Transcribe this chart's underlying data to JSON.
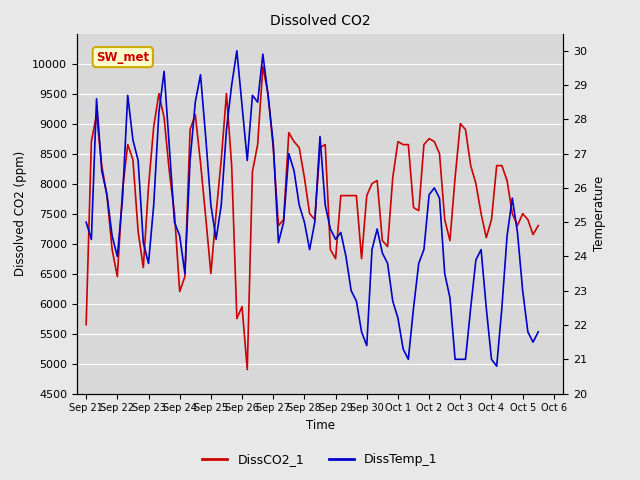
{
  "title": "Dissolved CO2",
  "xlabel": "Time",
  "ylabel_left": "Dissolved CO2 (ppm)",
  "ylabel_right": "Temperature",
  "ylim_left": [
    4500,
    10500
  ],
  "ylim_right": [
    20.0,
    30.5
  ],
  "yticks_left": [
    4500,
    5000,
    5500,
    6000,
    6500,
    7000,
    7500,
    8000,
    8500,
    9000,
    9500,
    10000
  ],
  "yticks_right": [
    20.0,
    21.0,
    22.0,
    23.0,
    24.0,
    25.0,
    26.0,
    27.0,
    28.0,
    29.0,
    30.0
  ],
  "annotation_text": "SW_met",
  "annotation_color": "#cc0000",
  "annotation_bg": "#ffffcc",
  "annotation_border": "#ccaa00",
  "line_color_co2": "#cc0000",
  "line_color_temp": "#0000cc",
  "legend_co2": "DissCO2_1",
  "legend_temp": "DissTemp_1",
  "background_color": "#e8e8e8",
  "plot_bg": "#d8d8d8",
  "time_points": [
    0.0,
    0.167,
    0.333,
    0.5,
    0.667,
    0.833,
    1.0,
    1.167,
    1.333,
    1.5,
    1.667,
    1.833,
    2.0,
    2.167,
    2.333,
    2.5,
    2.667,
    2.833,
    3.0,
    3.167,
    3.333,
    3.5,
    3.667,
    3.833,
    4.0,
    4.167,
    4.333,
    4.5,
    4.667,
    4.833,
    5.0,
    5.167,
    5.333,
    5.5,
    5.667,
    5.833,
    6.0,
    6.167,
    6.333,
    6.5,
    6.667,
    6.833,
    7.0,
    7.167,
    7.333,
    7.5,
    7.667,
    7.833,
    8.0,
    8.167,
    8.333,
    8.5,
    8.667,
    8.833,
    9.0,
    9.167,
    9.333,
    9.5,
    9.667,
    9.833,
    10.0,
    10.167,
    10.333,
    10.5,
    10.667,
    10.833,
    11.0,
    11.167,
    11.333,
    11.5,
    11.667,
    11.833,
    12.0,
    12.167,
    12.333,
    12.5,
    12.667,
    12.833,
    13.0,
    13.167,
    13.333,
    13.5,
    13.667,
    13.833,
    14.0,
    14.167,
    14.333,
    14.5
  ],
  "co2_values": [
    5650,
    8700,
    9150,
    8300,
    7800,
    6900,
    6450,
    7900,
    8650,
    8400,
    7200,
    6600,
    7950,
    8950,
    9500,
    9100,
    8200,
    7500,
    6200,
    6450,
    8900,
    9150,
    8350,
    7450,
    6500,
    7500,
    8400,
    9500,
    8300,
    5750,
    5950,
    4900,
    8200,
    8650,
    9950,
    9500,
    8600,
    7300,
    7400,
    8850,
    8700,
    8600,
    8100,
    7500,
    7400,
    8600,
    8650,
    6900,
    6750,
    7800,
    7800,
    7800,
    7800,
    6750,
    7800,
    8000,
    8050,
    7050,
    6950,
    8100,
    8700,
    8650,
    8650,
    7600,
    7550,
    8650,
    8750,
    8700,
    8500,
    7400,
    7050,
    8100,
    9000,
    8900,
    8300,
    8000,
    7500,
    7100,
    7400,
    8300,
    8300,
    8050,
    7500,
    7300,
    7500,
    7400,
    7150,
    7300
  ],
  "temp_values": [
    25.0,
    24.5,
    28.6,
    26.5,
    25.8,
    24.6,
    24.0,
    25.7,
    28.7,
    27.4,
    26.8,
    24.4,
    23.8,
    25.5,
    28.2,
    29.4,
    27.2,
    25.0,
    24.6,
    23.5,
    26.8,
    28.5,
    29.3,
    27.5,
    25.5,
    24.5,
    25.5,
    27.7,
    29.0,
    30.0,
    28.4,
    26.8,
    28.7,
    28.5,
    29.9,
    28.7,
    27.3,
    24.4,
    25.0,
    27.0,
    26.5,
    25.5,
    25.0,
    24.2,
    25.0,
    27.5,
    25.5,
    24.8,
    24.5,
    24.7,
    24.0,
    23.0,
    22.7,
    21.8,
    21.4,
    24.2,
    24.8,
    24.1,
    23.8,
    22.7,
    22.2,
    21.3,
    21.0,
    22.5,
    23.8,
    24.2,
    25.8,
    26.0,
    25.7,
    23.5,
    22.8,
    21.0,
    21.0,
    21.0,
    22.5,
    23.9,
    24.2,
    22.5,
    21.0,
    20.8,
    22.5,
    24.6,
    25.7,
    24.7,
    23.0,
    21.8,
    21.5,
    21.8
  ],
  "xtick_positions": [
    0,
    1,
    2,
    3,
    4,
    5,
    6,
    7,
    8,
    9,
    10,
    11,
    12,
    13,
    14,
    15
  ],
  "xtick_labels": [
    "Sep 21",
    "Sep 22",
    "Sep 23",
    "Sep 24",
    "Sep 25",
    "Sep 26",
    "Sep 27",
    "Sep 28",
    "Sep 29",
    "Sep 30",
    "Oct 1",
    "Oct 2",
    "Oct 3",
    "Oct 4",
    "Oct 5",
    "Oct 6"
  ]
}
